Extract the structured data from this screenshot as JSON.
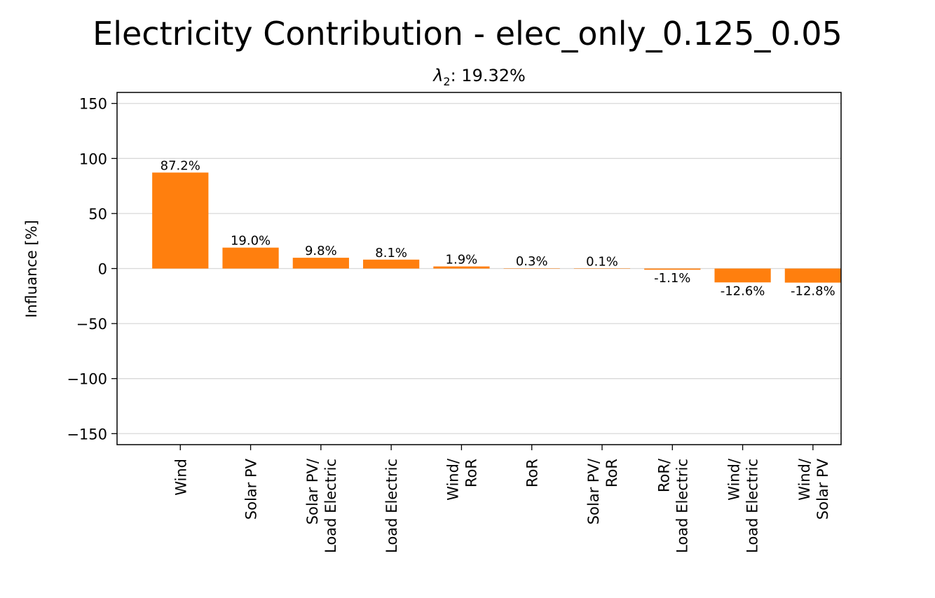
{
  "title": "Electricity Contribution - elec_only_0.125_0.05",
  "subtitle": {
    "symbol": "λ",
    "subscript": "2",
    "text": ": 19.32%"
  },
  "colors": {
    "bar": "#ff7f0e",
    "grid": "#d9d9d9",
    "axis": "#000000"
  },
  "chart_data": {
    "type": "bar",
    "title": "Electricity Contribution - elec_only_0.125_0.05",
    "ylabel": "Influance [%]",
    "xlabel": "",
    "ylim": [
      -160,
      160
    ],
    "yticks": [
      -150,
      -100,
      -50,
      0,
      50,
      100,
      150
    ],
    "ytick_labels": [
      "−150",
      "−100",
      "−50",
      "0",
      "50",
      "100",
      "150"
    ],
    "grid": "horizontal",
    "categories": [
      [
        "Wind"
      ],
      [
        "Solar PV"
      ],
      [
        "Solar PV/",
        "Load Electric"
      ],
      [
        "Load Electric"
      ],
      [
        "Wind/",
        "RoR"
      ],
      [
        "RoR"
      ],
      [
        "Solar PV/",
        "RoR"
      ],
      [
        "RoR/",
        "Load Electric"
      ],
      [
        "Wind/",
        "Load Electric"
      ],
      [
        "Wind/",
        "Solar PV"
      ]
    ],
    "values": [
      87.2,
      19.0,
      9.8,
      8.1,
      1.9,
      0.3,
      0.1,
      -1.1,
      -12.6,
      -12.8
    ],
    "value_labels": [
      "87.2%",
      "19.0%",
      "9.8%",
      "8.1%",
      "1.9%",
      "0.3%",
      "0.1%",
      "-1.1%",
      "-12.6%",
      "-12.8%"
    ]
  }
}
